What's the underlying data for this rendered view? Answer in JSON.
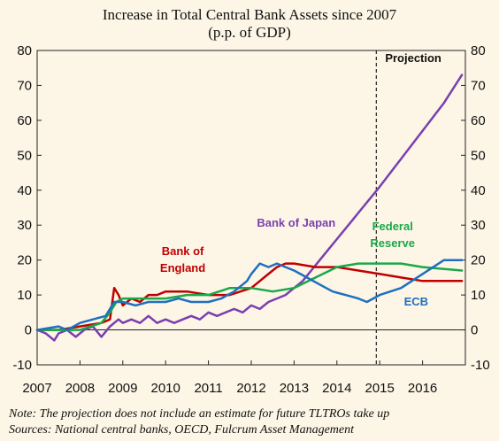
{
  "chart_data": {
    "type": "line",
    "title": "Increase  in Total Central Bank Assets since  2007",
    "subtitle": "(p.p. of GDP)",
    "xlim": [
      2007.0,
      2017.0
    ],
    "ylim": [
      -10,
      80
    ],
    "yticks": [
      "80",
      "70",
      "60",
      "50",
      "40",
      "30",
      "20",
      "10",
      "0",
      "-10"
    ],
    "xticks": [
      "2007",
      "2008",
      "2009",
      "2010",
      "2011",
      "2012",
      "2013",
      "2014",
      "2015",
      "2016"
    ],
    "projection_label": "Projection",
    "projection_start": 2014.92,
    "series": [
      {
        "name": "Bank of Japan",
        "label_lines": [
          "Bank of Japan"
        ],
        "color": "#7a3fb0",
        "x": [
          2007.0,
          2007.2,
          2007.4,
          2007.5,
          2007.7,
          2007.9,
          2008.1,
          2008.3,
          2008.5,
          2008.7,
          2008.9,
          2009.0,
          2009.2,
          2009.4,
          2009.6,
          2009.8,
          2010.0,
          2010.2,
          2010.4,
          2010.6,
          2010.8,
          2011.0,
          2011.2,
          2011.4,
          2011.6,
          2011.8,
          2012.0,
          2012.2,
          2012.4,
          2012.6,
          2012.8,
          2013.0,
          2013.2,
          2013.4,
          2013.6,
          2013.8,
          2014.0,
          2014.2,
          2014.4,
          2014.6,
          2014.8,
          2015.0,
          2015.5,
          2016.0,
          2016.5,
          2016.92
        ],
        "y": [
          0,
          -1,
          -3,
          -1,
          0,
          -2,
          0,
          1,
          -2,
          1,
          3,
          2,
          3,
          2,
          4,
          2,
          3,
          2,
          3,
          4,
          3,
          5,
          4,
          5,
          6,
          5,
          7,
          6,
          8,
          9,
          10,
          12,
          14,
          17,
          20,
          23,
          26,
          29,
          32,
          35,
          38,
          41,
          49,
          57,
          65,
          73
        ]
      },
      {
        "name": "Bank of England",
        "label_lines": [
          "Bank of",
          "England"
        ],
        "color": "#c00000",
        "x": [
          2007.0,
          2007.5,
          2008.0,
          2008.5,
          2008.7,
          2008.8,
          2008.9,
          2009.0,
          2009.2,
          2009.4,
          2009.6,
          2009.8,
          2010.0,
          2010.5,
          2011.0,
          2011.5,
          2012.0,
          2012.2,
          2012.4,
          2012.6,
          2012.8,
          2013.0,
          2013.5,
          2014.0,
          2014.5,
          2015.0,
          2015.5,
          2016.0,
          2016.92
        ],
        "y": [
          0,
          0,
          1,
          2,
          3,
          12,
          10,
          7,
          9,
          8,
          10,
          10,
          11,
          11,
          10,
          10,
          12,
          14,
          16,
          18,
          19,
          19,
          18,
          18,
          17,
          16,
          15,
          14,
          14
        ]
      },
      {
        "name": "Federal Reserve",
        "label_lines": [
          "Federal",
          "Reserve"
        ],
        "color": "#19a84a",
        "x": [
          2007.0,
          2007.5,
          2008.0,
          2008.5,
          2008.7,
          2008.85,
          2009.0,
          2009.5,
          2010.0,
          2010.5,
          2011.0,
          2011.5,
          2012.0,
          2012.5,
          2013.0,
          2013.5,
          2014.0,
          2014.5,
          2015.0,
          2015.5,
          2016.0,
          2016.92
        ],
        "y": [
          0,
          0,
          0,
          2,
          5,
          8,
          9,
          9,
          9,
          10,
          10,
          12,
          12,
          11,
          12,
          15,
          18,
          19,
          19,
          19,
          18,
          17
        ]
      },
      {
        "name": "ECB",
        "label_lines": [
          "ECB"
        ],
        "color": "#1f6fc0",
        "x": [
          2007.0,
          2007.5,
          2007.7,
          2008.0,
          2008.3,
          2008.6,
          2008.8,
          2009.0,
          2009.3,
          2009.6,
          2010.0,
          2010.3,
          2010.6,
          2011.0,
          2011.3,
          2011.6,
          2011.9,
          2012.0,
          2012.2,
          2012.4,
          2012.6,
          2012.8,
          2013.0,
          2013.3,
          2013.6,
          2013.9,
          2014.2,
          2014.5,
          2014.7,
          2015.0,
          2015.5,
          2016.0,
          2016.5,
          2016.92
        ],
        "y": [
          0,
          1,
          0,
          2,
          3,
          4,
          8,
          8,
          7,
          8,
          8,
          9,
          8,
          8,
          9,
          11,
          14,
          16,
          19,
          18,
          19,
          18,
          17,
          15,
          13,
          11,
          10,
          9,
          8,
          10,
          12,
          16,
          20,
          20
        ]
      }
    ],
    "notes": [
      "Note: The projection does not include an estimate for future TLTROs take up",
      "Sources: National central banks, OECD,  Fulcrum Asset Management"
    ]
  }
}
